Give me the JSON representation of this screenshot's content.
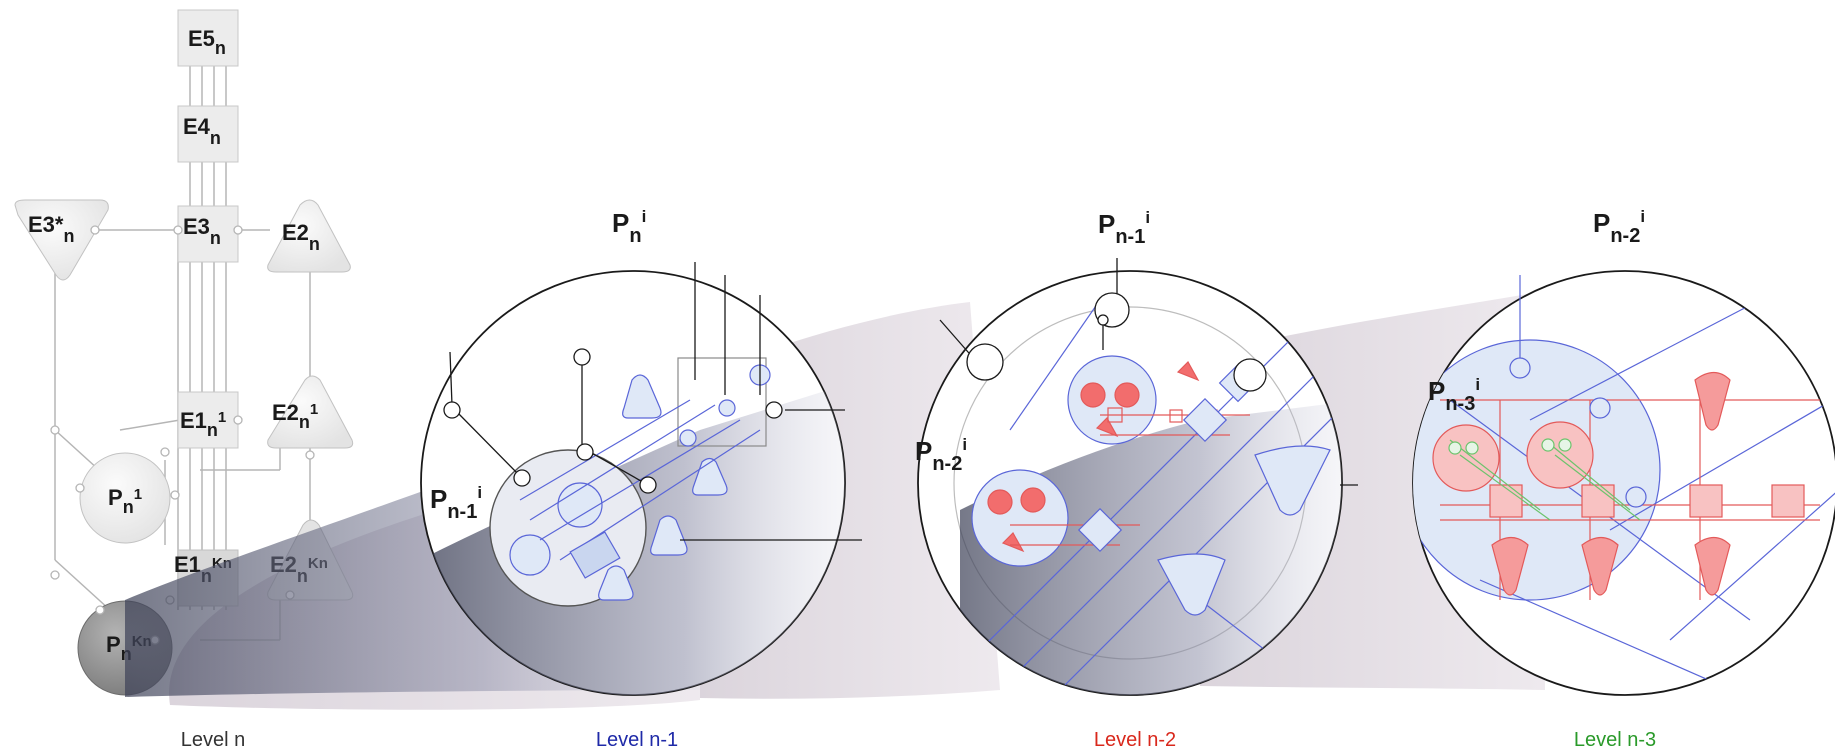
{
  "nodes": {
    "e5": {
      "base": "E5",
      "sub": "n",
      "sup": ""
    },
    "e4": {
      "base": "E4",
      "sub": "n",
      "sup": ""
    },
    "e3": {
      "base": "E3",
      "sub": "n",
      "sup": ""
    },
    "e3star": {
      "base": "E3*",
      "sub": "n",
      "sup": ""
    },
    "e2": {
      "base": "E2",
      "sub": "n",
      "sup": ""
    },
    "e1_1": {
      "base": "E1",
      "sub": "n",
      "sup": "1"
    },
    "e2_1": {
      "base": "E2",
      "sub": "n",
      "sup": "1"
    },
    "p_1": {
      "base": "P",
      "sub": "n",
      "sup": "1"
    },
    "e1_kn": {
      "base": "E1",
      "sub": "n",
      "sup": "Kn"
    },
    "e2_kn": {
      "base": "E2",
      "sub": "n",
      "sup": "Kn"
    },
    "p_kn": {
      "base": "P",
      "sub": "n",
      "sup": "Kn"
    }
  },
  "zoom_titles": {
    "z1": {
      "base": "P",
      "sub": "n",
      "sup": "i"
    },
    "z2": {
      "base": "P",
      "sub": "n-1",
      "sup": "i"
    },
    "z3": {
      "base": "P",
      "sub": "n-2",
      "sup": "i"
    }
  },
  "inner_labels": {
    "z1": {
      "base": "P",
      "sub": "n-1",
      "sup": "i"
    },
    "z2": {
      "base": "P",
      "sub": "n-2",
      "sup": "i"
    },
    "z3": {
      "base": "P",
      "sub": "n-3",
      "sup": "i"
    }
  },
  "levels": [
    {
      "text": "Level n",
      "color": "#333333"
    },
    {
      "text": "Level n-1",
      "color": "#1f2aa8"
    },
    {
      "text": "Level n-2",
      "color": "#d9281c"
    },
    {
      "text": "Level n-3",
      "color": "#2a9a2a"
    }
  ],
  "colors": {
    "blue_line": "#5a66d8",
    "blue_fill": "#dfe8f7",
    "red_fill": "#f26d6d",
    "red_line": "#e35a5a",
    "green_line": "#6cc36c",
    "gray_node": "#eeeeee",
    "dark_node": "#8f8f8f"
  }
}
